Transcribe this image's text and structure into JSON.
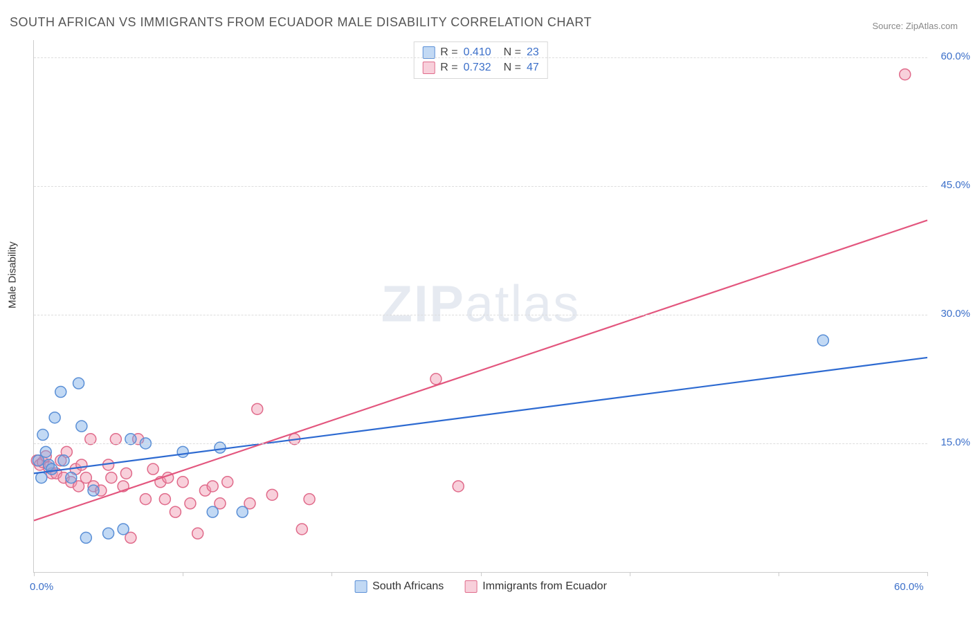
{
  "title": "SOUTH AFRICAN VS IMMIGRANTS FROM ECUADOR MALE DISABILITY CORRELATION CHART",
  "source": "Source: ZipAtlas.com",
  "watermark": {
    "bold": "ZIP",
    "rest": "atlas"
  },
  "chart": {
    "type": "scatter",
    "ylabel": "Male Disability",
    "xlim": [
      0,
      60
    ],
    "ylim": [
      0,
      62
    ],
    "y_ticks": [
      15,
      30,
      45,
      60
    ],
    "y_tick_labels": [
      "15.0%",
      "30.0%",
      "45.0%",
      "60.0%"
    ],
    "x_ticks": [
      0,
      10,
      20,
      30,
      40,
      50,
      60
    ],
    "x_tick_labels_shown": {
      "0": "0.0%",
      "60": "60.0%"
    },
    "grid_color": "#dddddd",
    "axis_color": "#cccccc",
    "background_color": "#ffffff",
    "marker_radius": 8,
    "marker_stroke_width": 1.5,
    "trend_line_width": 2.2,
    "series": [
      {
        "name": "South Africans",
        "fill_color": "rgba(120,170,230,0.45)",
        "stroke_color": "#5a8fd6",
        "line_color": "#2d6ad1",
        "R": "0.410",
        "N": "23",
        "trend": {
          "x1": 0,
          "y1": 11.5,
          "x2": 60,
          "y2": 25
        },
        "points": [
          [
            0.3,
            13
          ],
          [
            0.5,
            11
          ],
          [
            0.6,
            16
          ],
          [
            0.8,
            14
          ],
          [
            1.0,
            12.5
          ],
          [
            1.2,
            12
          ],
          [
            1.4,
            18
          ],
          [
            1.8,
            21
          ],
          [
            2.0,
            13
          ],
          [
            2.5,
            11
          ],
          [
            3.0,
            22
          ],
          [
            3.2,
            17
          ],
          [
            3.5,
            4
          ],
          [
            4.0,
            9.5
          ],
          [
            5.0,
            4.5
          ],
          [
            6.0,
            5
          ],
          [
            6.5,
            15.5
          ],
          [
            7.5,
            15
          ],
          [
            10.0,
            14
          ],
          [
            12.0,
            7
          ],
          [
            12.5,
            14.5
          ],
          [
            14.0,
            7
          ],
          [
            53.0,
            27
          ]
        ]
      },
      {
        "name": "Immigrants from Ecuador",
        "fill_color": "rgba(240,150,175,0.45)",
        "stroke_color": "#e06a8a",
        "line_color": "#e3567e",
        "R": "0.732",
        "N": "47",
        "trend": {
          "x1": 0,
          "y1": 6,
          "x2": 60,
          "y2": 41
        },
        "points": [
          [
            0.2,
            13
          ],
          [
            0.4,
            12.5
          ],
          [
            0.6,
            12.8
          ],
          [
            0.8,
            13.5
          ],
          [
            1.0,
            12.2
          ],
          [
            1.2,
            11.5
          ],
          [
            1.5,
            11.5
          ],
          [
            1.8,
            13
          ],
          [
            2.0,
            11
          ],
          [
            2.2,
            14
          ],
          [
            2.5,
            10.5
          ],
          [
            2.8,
            12
          ],
          [
            3.0,
            10
          ],
          [
            3.2,
            12.5
          ],
          [
            3.5,
            11
          ],
          [
            3.8,
            15.5
          ],
          [
            4.0,
            10
          ],
          [
            4.5,
            9.5
          ],
          [
            5.0,
            12.5
          ],
          [
            5.2,
            11
          ],
          [
            5.5,
            15.5
          ],
          [
            6.0,
            10
          ],
          [
            6.2,
            11.5
          ],
          [
            6.5,
            4
          ],
          [
            7.0,
            15.5
          ],
          [
            7.5,
            8.5
          ],
          [
            8.0,
            12
          ],
          [
            8.5,
            10.5
          ],
          [
            8.8,
            8.5
          ],
          [
            9.0,
            11
          ],
          [
            9.5,
            7
          ],
          [
            10.0,
            10.5
          ],
          [
            10.5,
            8
          ],
          [
            11.0,
            4.5
          ],
          [
            11.5,
            9.5
          ],
          [
            12.0,
            10
          ],
          [
            12.5,
            8
          ],
          [
            13.0,
            10.5
          ],
          [
            14.5,
            8
          ],
          [
            15.0,
            19
          ],
          [
            16.0,
            9
          ],
          [
            17.5,
            15.5
          ],
          [
            18.0,
            5
          ],
          [
            18.5,
            8.5
          ],
          [
            27.0,
            22.5
          ],
          [
            28.5,
            10
          ],
          [
            58.5,
            58
          ]
        ]
      }
    ]
  },
  "legend_bottom": [
    {
      "label": "South Africans",
      "series_index": 0
    },
    {
      "label": "Immigrants from Ecuador",
      "series_index": 1
    }
  ]
}
